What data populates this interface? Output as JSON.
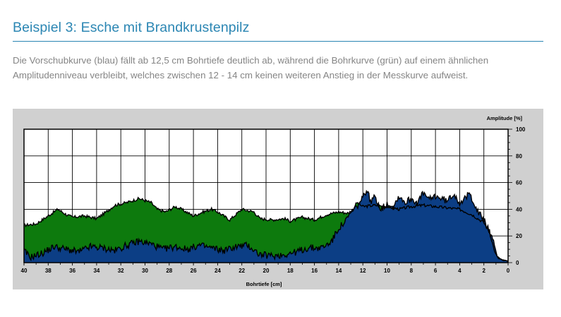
{
  "title": "Beispiel 3: Esche mit Brandkrustenpilz",
  "description": "Die Vorschubkurve (blau) fällt ab 12,5 cm Bohrtiefe deutlich ab, während die Bohrkurve (grün) auf einem ähnlichen Amplitudenniveau verbleibt, welches zwischen 12 - 14 cm keinen weiteren Anstieg in der Messkurve aufweist.",
  "colors": {
    "heading": "#2b86b3",
    "panel": "#d0d0d0",
    "green": "#0d7a0d",
    "blue": "#0c3e85"
  },
  "chart_data": {
    "type": "area",
    "title": "",
    "xlabel": "Bohrtiefe [cm]",
    "ylabel": "Amplitude [%]",
    "xlim": [
      40,
      0
    ],
    "ylim": [
      0,
      100
    ],
    "x_ticks": [
      "40",
      "38",
      "36",
      "34",
      "32",
      "30",
      "28",
      "26",
      "24",
      "22",
      "20",
      "18",
      "16",
      "14",
      "12",
      "10",
      "8",
      "6",
      "4",
      "2",
      "0"
    ],
    "y_ticks": [
      "0",
      "20",
      "40",
      "60",
      "80",
      "100"
    ],
    "grid": true,
    "series": [
      {
        "name": "",
        "color": "#0d7a0d",
        "points": [
          [
            40,
            28
          ],
          [
            39,
            29
          ],
          [
            38,
            35
          ],
          [
            37.2,
            40
          ],
          [
            36.5,
            36
          ],
          [
            36,
            34
          ],
          [
            35,
            35
          ],
          [
            34,
            33
          ],
          [
            33.2,
            38
          ],
          [
            32.5,
            43
          ],
          [
            31.5,
            45
          ],
          [
            30.5,
            48
          ],
          [
            29.5,
            45
          ],
          [
            29,
            40
          ],
          [
            28.3,
            38
          ],
          [
            27.5,
            42
          ],
          [
            27,
            40
          ],
          [
            26,
            35
          ],
          [
            25.2,
            38
          ],
          [
            24.5,
            40
          ],
          [
            24,
            38
          ],
          [
            23,
            32
          ],
          [
            22,
            40
          ],
          [
            21,
            38
          ],
          [
            20.5,
            33
          ],
          [
            19.5,
            32
          ],
          [
            18.5,
            33
          ],
          [
            18,
            31
          ],
          [
            17,
            34
          ],
          [
            16,
            32
          ],
          [
            15,
            36
          ],
          [
            14,
            38
          ],
          [
            13.2,
            37
          ],
          [
            12.8,
            40
          ],
          [
            12.5,
            45
          ],
          [
            12,
            42
          ],
          [
            11,
            43
          ],
          [
            10,
            42
          ],
          [
            9,
            40
          ],
          [
            8,
            42
          ],
          [
            7,
            43
          ],
          [
            6,
            42
          ],
          [
            5,
            41
          ],
          [
            4,
            40
          ],
          [
            3,
            36
          ],
          [
            2,
            30
          ],
          [
            1.5,
            22
          ],
          [
            1.1,
            8
          ],
          [
            0.8,
            3
          ],
          [
            0,
            1
          ]
        ]
      },
      {
        "name": "",
        "color": "#0c3e85",
        "points": [
          [
            40,
            9
          ],
          [
            39.5,
            4
          ],
          [
            38.5,
            7
          ],
          [
            37.5,
            12
          ],
          [
            36.5,
            10
          ],
          [
            35.5,
            8
          ],
          [
            34.5,
            12
          ],
          [
            33.5,
            11
          ],
          [
            32.5,
            9
          ],
          [
            31.5,
            13
          ],
          [
            30.5,
            16
          ],
          [
            29.5,
            14
          ],
          [
            28.5,
            10
          ],
          [
            27.5,
            12
          ],
          [
            26.5,
            10
          ],
          [
            25.5,
            13
          ],
          [
            24.5,
            11
          ],
          [
            23.5,
            9
          ],
          [
            22.5,
            12
          ],
          [
            21.5,
            13
          ],
          [
            20.5,
            6
          ],
          [
            19.5,
            5
          ],
          [
            18.5,
            6
          ],
          [
            17.5,
            8
          ],
          [
            16.5,
            11
          ],
          [
            15.5,
            11
          ],
          [
            15,
            13
          ],
          [
            14.5,
            17
          ],
          [
            14,
            26
          ],
          [
            13.5,
            30
          ],
          [
            13,
            37
          ],
          [
            12.5,
            42
          ],
          [
            12,
            48
          ],
          [
            11.7,
            55
          ],
          [
            11.3,
            45
          ],
          [
            11,
            50
          ],
          [
            10.5,
            40
          ],
          [
            10,
            44
          ],
          [
            9.5,
            42
          ],
          [
            9,
            50
          ],
          [
            8.5,
            45
          ],
          [
            8,
            48
          ],
          [
            7.5,
            45
          ],
          [
            7,
            52
          ],
          [
            6.5,
            47
          ],
          [
            6,
            50
          ],
          [
            5.5,
            48
          ],
          [
            5,
            46
          ],
          [
            4.5,
            52
          ],
          [
            4,
            45
          ],
          [
            3.5,
            48
          ],
          [
            3.2,
            52
          ],
          [
            2.8,
            45
          ],
          [
            2.5,
            38
          ],
          [
            2,
            32
          ],
          [
            1.6,
            25
          ],
          [
            1.2,
            15
          ],
          [
            0.9,
            5
          ],
          [
            0.5,
            2
          ],
          [
            0,
            1
          ]
        ]
      }
    ]
  }
}
